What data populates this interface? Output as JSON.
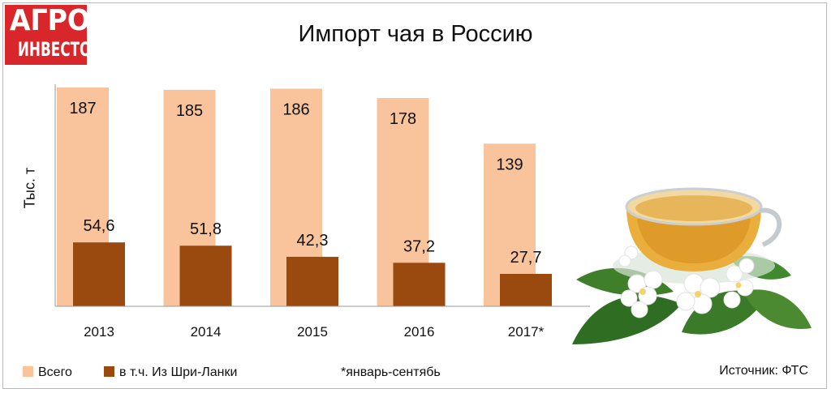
{
  "logo": {
    "line1": "АГРО",
    "line2": "ИНВЕСТОР"
  },
  "chart_data": {
    "type": "bar",
    "title": "Импорт чая в Россию",
    "ylabel": "Тыс. т",
    "xlabel": "",
    "categories": [
      "2013",
      "2014",
      "2015",
      "2016",
      "2017*"
    ],
    "series": [
      {
        "name": "Всего",
        "values": [
          187,
          185,
          186,
          178,
          139
        ],
        "labels": [
          "187",
          "185",
          "186",
          "178",
          "139"
        ],
        "color": "#f9c39c"
      },
      {
        "name": "в т.ч. Из Шри-Ланки",
        "values": [
          54.6,
          51.8,
          42.3,
          37.2,
          27.7
        ],
        "labels": [
          "54,6",
          "51,8",
          "42,3",
          "37,2",
          "27,7"
        ],
        "color": "#9b4a0f"
      }
    ],
    "ylim": [
      0,
      187
    ],
    "grid": false,
    "legend": "bottom-left",
    "note": "*январь-сентябь",
    "source": "Источник: ФТС"
  },
  "image": {
    "name": "teacup-with-jasmine"
  }
}
